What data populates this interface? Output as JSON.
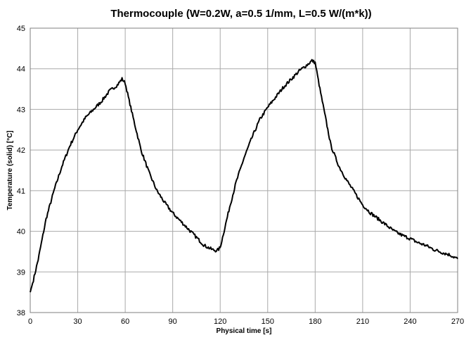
{
  "chart_data": {
    "type": "line",
    "title": "Thermocouple (W=0.2W, a=0.5 1/mm, L=0.5 W/(m*k))",
    "xlabel": "Physical time [s]",
    "ylabel": "Temperature (solid) [°C]",
    "xlim": [
      0,
      270
    ],
    "ylim": [
      38,
      45
    ],
    "x_ticks": [
      0,
      30,
      60,
      90,
      120,
      150,
      180,
      210,
      240,
      270
    ],
    "y_ticks": [
      38,
      39,
      40,
      41,
      42,
      43,
      44,
      45
    ],
    "grid": true,
    "series": [
      {
        "name": "Thermocouple",
        "color": "#000000",
        "points": [
          [
            0,
            38.5
          ],
          [
            2,
            38.8
          ],
          [
            5,
            39.3
          ],
          [
            8,
            39.9
          ],
          [
            10,
            40.3
          ],
          [
            15,
            41.0
          ],
          [
            20,
            41.6
          ],
          [
            25,
            42.1
          ],
          [
            30,
            42.5
          ],
          [
            35,
            42.8
          ],
          [
            40,
            43.0
          ],
          [
            45,
            43.2
          ],
          [
            50,
            43.45
          ],
          [
            55,
            43.6
          ],
          [
            58,
            43.75
          ],
          [
            60,
            43.65
          ],
          [
            62,
            43.3
          ],
          [
            65,
            42.8
          ],
          [
            70,
            42.0
          ],
          [
            75,
            41.45
          ],
          [
            80,
            41.0
          ],
          [
            85,
            40.7
          ],
          [
            90,
            40.45
          ],
          [
            95,
            40.25
          ],
          [
            100,
            40.05
          ],
          [
            105,
            39.85
          ],
          [
            110,
            39.65
          ],
          [
            115,
            39.55
          ],
          [
            118,
            39.52
          ],
          [
            120,
            39.6
          ],
          [
            123,
            40.1
          ],
          [
            126,
            40.6
          ],
          [
            130,
            41.2
          ],
          [
            135,
            41.8
          ],
          [
            140,
            42.3
          ],
          [
            145,
            42.75
          ],
          [
            150,
            43.05
          ],
          [
            155,
            43.3
          ],
          [
            160,
            43.55
          ],
          [
            165,
            43.75
          ],
          [
            170,
            43.95
          ],
          [
            175,
            44.1
          ],
          [
            178,
            44.2
          ],
          [
            180,
            44.15
          ],
          [
            183,
            43.5
          ],
          [
            186,
            42.9
          ],
          [
            190,
            42.1
          ],
          [
            195,
            41.6
          ],
          [
            200,
            41.25
          ],
          [
            205,
            40.95
          ],
          [
            210,
            40.65
          ],
          [
            215,
            40.45
          ],
          [
            220,
            40.3
          ],
          [
            225,
            40.15
          ],
          [
            230,
            40.0
          ],
          [
            235,
            39.9
          ],
          [
            240,
            39.82
          ],
          [
            245,
            39.72
          ],
          [
            250,
            39.65
          ],
          [
            255,
            39.55
          ],
          [
            260,
            39.48
          ],
          [
            265,
            39.42
          ],
          [
            270,
            39.32
          ]
        ]
      }
    ]
  }
}
